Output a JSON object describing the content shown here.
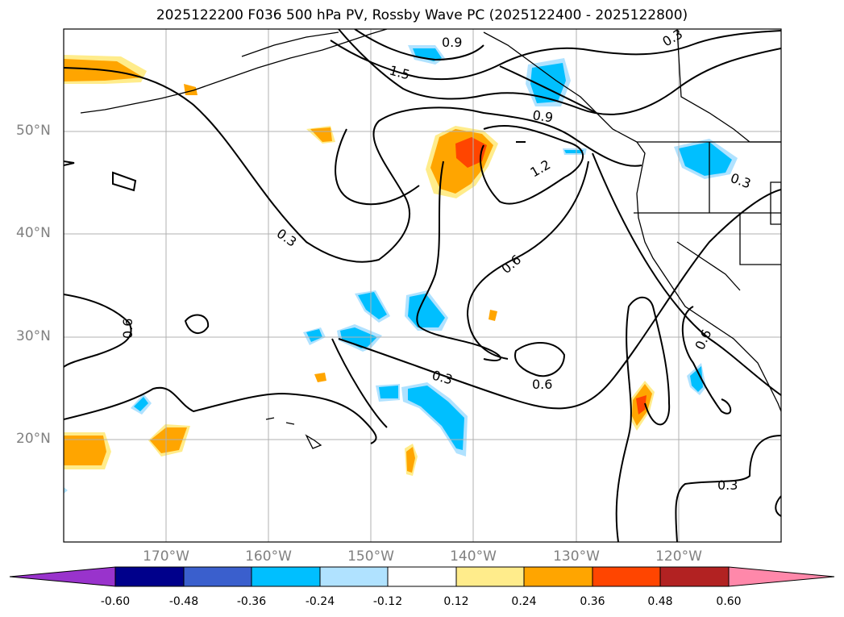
{
  "title": "2025122200 F036 500 hPa PV, Rossby Wave PC (2025122400 - 2025122800)",
  "lat_labels": [
    "50°N",
    "40°N",
    "30°N",
    "20°N"
  ],
  "lon_labels": [
    "170°W",
    "160°W",
    "150°W",
    "140°W",
    "130°W",
    "120°W"
  ],
  "contour_labels": [
    "0.9",
    "0.3",
    "1.5",
    "0.9",
    "1.2",
    "0.3",
    "0.3",
    "0.6",
    "0.6",
    "0.3",
    "0.6",
    "0.6",
    "0.3"
  ],
  "colorbar": {
    "ticks": [
      "-0.60",
      "-0.48",
      "-0.36",
      "-0.24",
      "-0.12",
      "0.12",
      "0.24",
      "0.36",
      "0.48",
      "0.60"
    ],
    "colors": [
      "#9933cc",
      "#00008b",
      "#3a5fcd",
      "#00bfff",
      "#b0e2ff",
      "#ffffff",
      "#ffec8b",
      "#ffa500",
      "#ff4500",
      "#b22222",
      "#ff88aa"
    ]
  }
}
